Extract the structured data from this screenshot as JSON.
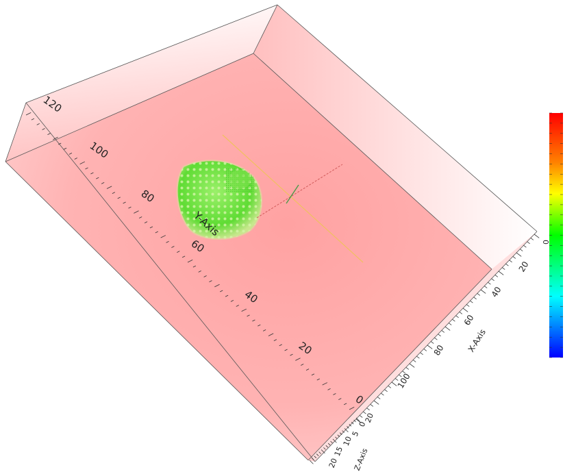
{
  "viewer": {
    "axes": {
      "y": {
        "title": "Y-Axis",
        "ticks": [
          "120",
          "100",
          "80",
          "60",
          "40",
          "20",
          "0"
        ]
      },
      "x": {
        "title": "X-Axis",
        "ticks": [
          "20",
          "40",
          "60",
          "80",
          "100"
        ]
      },
      "z": {
        "title": "Z-Axis",
        "ticks": [
          "20",
          "15",
          "10",
          "5",
          "0"
        ],
        "end_tick": "20"
      }
    },
    "colorbar": {
      "label": "0",
      "colors": [
        "#ff0000",
        "#ff7f00",
        "#ffff00",
        "#00ff00",
        "#00ffff",
        "#0000ff"
      ]
    },
    "volume_color": "#ff9a9a",
    "object_color": "#6be03b"
  }
}
